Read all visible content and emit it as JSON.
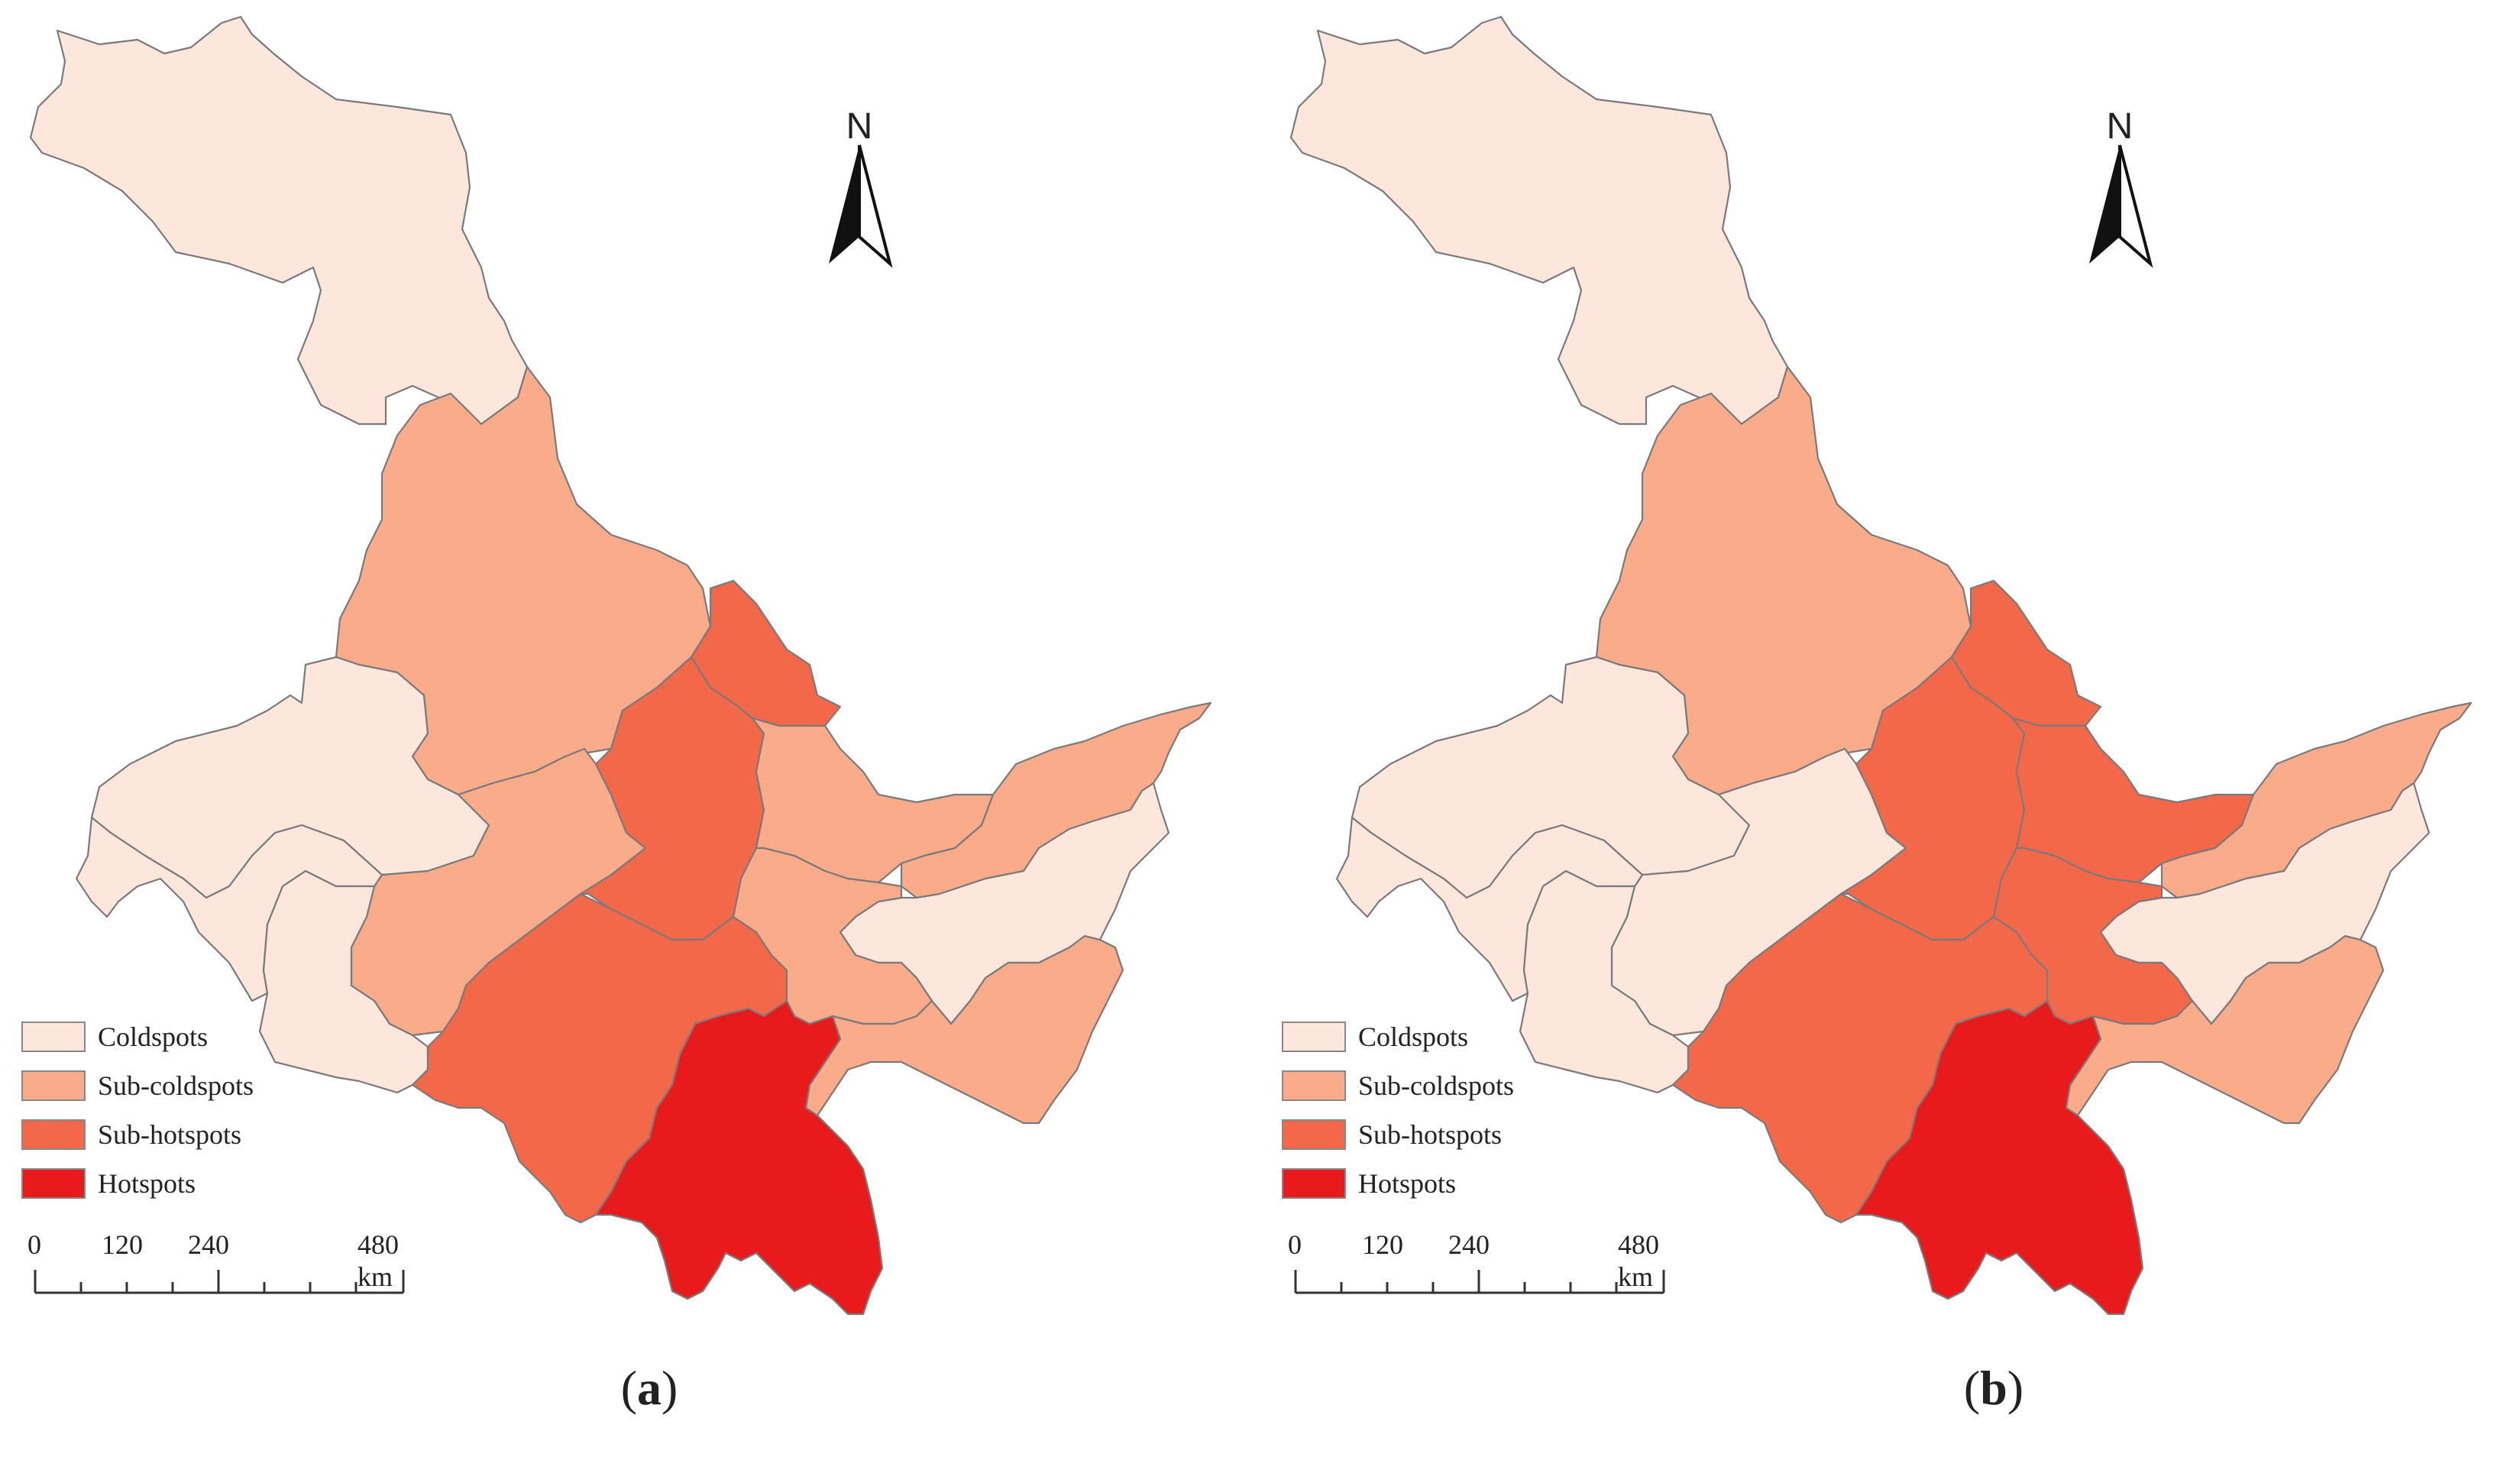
{
  "colors": {
    "coldspots": "#fde6dc",
    "sub_coldspots": "#f9ab8a",
    "sub_hotspots": "#f4684a",
    "hotspots": "#e81a1c",
    "border": "#7a7a7a"
  },
  "legend": {
    "coldspots": "Coldspots",
    "sub_coldspots": "Sub-coldspots",
    "sub_hotspots": "Sub-hotspots",
    "hotspots": "Hotspots"
  },
  "north_label": "N",
  "scale": {
    "t0": "0",
    "t1": "120",
    "t2": "240",
    "t3": "480 km"
  },
  "panels": [
    {
      "caption_open": "(",
      "caption_letter": "a",
      "caption_close": ")",
      "regions": {
        "north": "coldspots",
        "central_north": "sub_coldspots",
        "west_mid": "coldspots",
        "center_west": "sub_coldspots",
        "northeast_strip": "sub_hotspots",
        "center_east": "sub_hotspots",
        "east_north": "sub_coldspots",
        "far_east": "sub_coldspots",
        "east_inner": "coldspots",
        "southwest_w": "coldspots",
        "southwest_e": "coldspots",
        "south_central": "sub_hotspots",
        "south_mid": "sub_coldspots",
        "southeast": "sub_coldspots",
        "south": "hotspots"
      }
    },
    {
      "caption_open": "(",
      "caption_letter": "b",
      "caption_close": ")",
      "regions": {
        "north": "coldspots",
        "central_north": "sub_coldspots",
        "west_mid": "coldspots",
        "center_west": "coldspots",
        "northeast_strip": "sub_hotspots",
        "center_east": "sub_hotspots",
        "east_north": "sub_hotspots",
        "far_east": "sub_coldspots",
        "east_inner": "coldspots",
        "southwest_w": "coldspots",
        "southwest_e": "coldspots",
        "south_central": "sub_hotspots",
        "south_mid": "sub_hotspots",
        "southeast": "sub_coldspots",
        "south": "hotspots"
      }
    }
  ]
}
